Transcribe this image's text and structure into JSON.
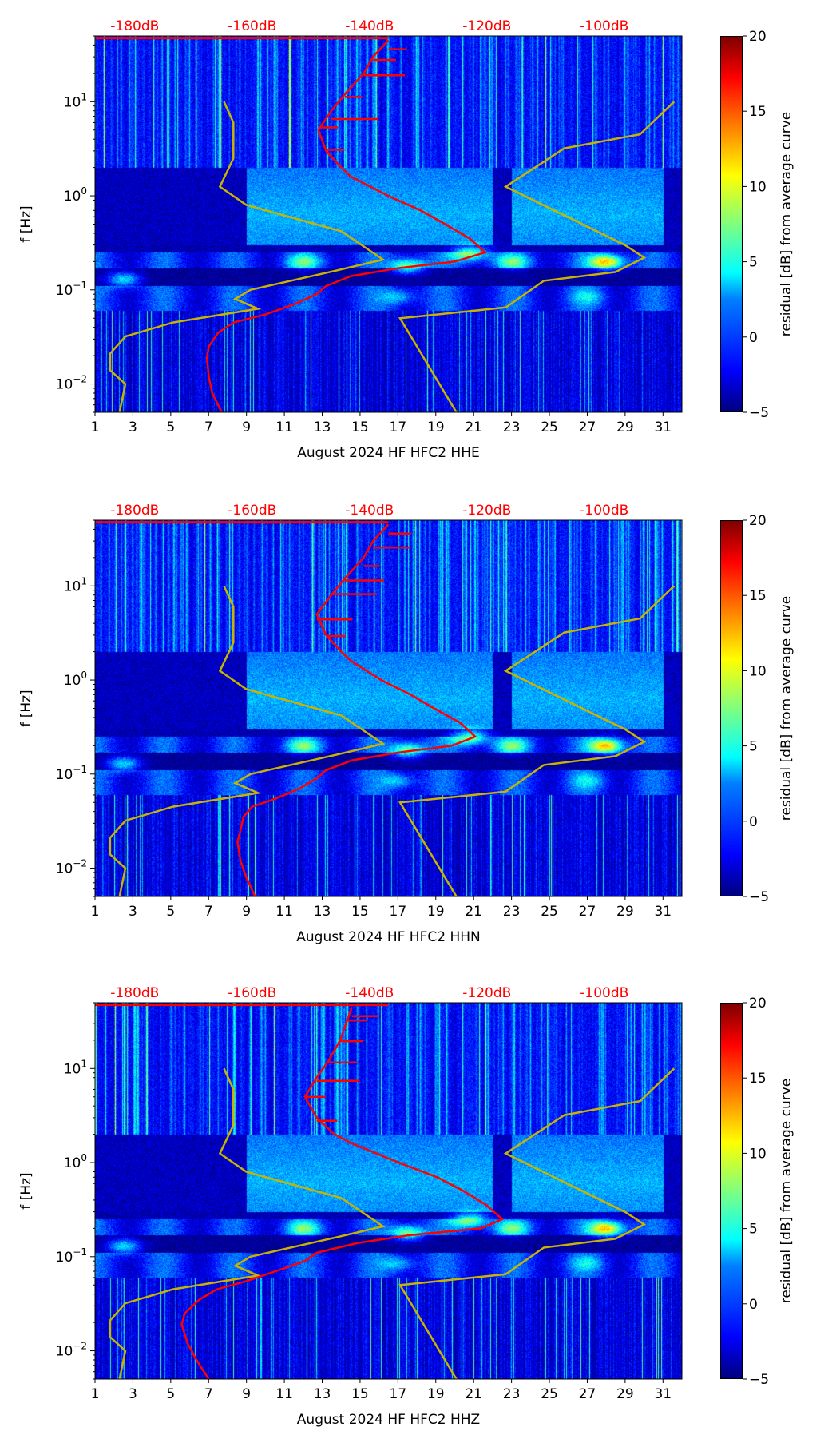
{
  "chart_data": [
    {
      "type": "heatmap",
      "title": "",
      "xlabel": "August 2024 HF HFC2  HHE",
      "ylabel": "f [Hz]",
      "colorbar_label": "residual [dB] from average curve",
      "colorbar_ticks": [
        "20",
        "15",
        "10",
        "5",
        "0",
        "−5"
      ],
      "colorbar_range": [
        -5,
        20
      ],
      "x_ticks": [
        "1",
        "3",
        "5",
        "7",
        "9",
        "11",
        "13",
        "15",
        "17",
        "19",
        "21",
        "23",
        "25",
        "27",
        "29",
        "31"
      ],
      "xlim": [
        1,
        32
      ],
      "y_scale": "log",
      "ylim": [
        0.005,
        50
      ],
      "y_ticks": [
        {
          "base": "10",
          "exp": "1"
        },
        {
          "base": "10",
          "exp": "0"
        },
        {
          "base": "10",
          "exp": "−1"
        },
        {
          "base": "10",
          "exp": "−2"
        }
      ],
      "top_axis_ticks": [
        "-180dB",
        "-160dB",
        "-140dB",
        "-120dB",
        "-100dB"
      ],
      "top_axis_color": "#ff0000",
      "red_curve_db": [
        [
          45,
          -136.8
        ],
        [
          30,
          -139.4
        ],
        [
          20,
          -141
        ],
        [
          12,
          -144.2
        ],
        [
          8,
          -146.5
        ],
        [
          5,
          -148.7
        ],
        [
          3,
          -147.4
        ],
        [
          2,
          -144.8
        ],
        [
          1.6,
          -143.2
        ],
        [
          1,
          -136.8
        ],
        [
          0.7,
          -131.3
        ],
        [
          0.5,
          -127.1
        ],
        [
          0.35,
          -122.9
        ],
        [
          0.25,
          -120.3
        ],
        [
          0.2,
          -125.5
        ],
        [
          0.17,
          -135.2
        ],
        [
          0.14,
          -143.2
        ],
        [
          0.11,
          -147.4
        ],
        [
          0.09,
          -149
        ],
        [
          0.07,
          -152.9
        ],
        [
          0.055,
          -157.7
        ],
        [
          0.045,
          -163.2
        ],
        [
          0.035,
          -165.8
        ],
        [
          0.025,
          -167.4
        ],
        [
          0.019,
          -167.7
        ],
        [
          0.012,
          -167.4
        ],
        [
          0.008,
          -166.8
        ],
        [
          0.005,
          -165.2
        ]
      ]
    },
    {
      "type": "heatmap",
      "title": "",
      "xlabel": "August 2024 HF HFC2  HHN",
      "ylabel": "f [Hz]",
      "colorbar_label": "residual [dB] from average curve",
      "colorbar_ticks": [
        "20",
        "15",
        "10",
        "5",
        "0",
        "−5"
      ],
      "colorbar_range": [
        -5,
        20
      ],
      "x_ticks": [
        "1",
        "3",
        "5",
        "7",
        "9",
        "11",
        "13",
        "15",
        "17",
        "19",
        "21",
        "23",
        "25",
        "27",
        "29",
        "31"
      ],
      "xlim": [
        1,
        32
      ],
      "y_scale": "log",
      "ylim": [
        0.005,
        50
      ],
      "y_ticks": [
        {
          "base": "10",
          "exp": "1"
        },
        {
          "base": "10",
          "exp": "0"
        },
        {
          "base": "10",
          "exp": "−1"
        },
        {
          "base": "10",
          "exp": "−2"
        }
      ],
      "top_axis_ticks": [
        "-180dB",
        "-160dB",
        "-140dB",
        "-120dB",
        "-100dB"
      ],
      "top_axis_color": "#ff0000",
      "red_curve_db": [
        [
          45,
          -136.8
        ],
        [
          30,
          -139.4
        ],
        [
          20,
          -141
        ],
        [
          12,
          -144.2
        ],
        [
          8,
          -146.5
        ],
        [
          5,
          -149
        ],
        [
          3,
          -147.4
        ],
        [
          2,
          -144.8
        ],
        [
          1.6,
          -143.2
        ],
        [
          1,
          -138
        ],
        [
          0.7,
          -133
        ],
        [
          0.5,
          -129
        ],
        [
          0.35,
          -124.5
        ],
        [
          0.25,
          -122
        ],
        [
          0.2,
          -126
        ],
        [
          0.17,
          -135
        ],
        [
          0.14,
          -143
        ],
        [
          0.11,
          -147.4
        ],
        [
          0.09,
          -149
        ],
        [
          0.07,
          -152
        ],
        [
          0.055,
          -156
        ],
        [
          0.045,
          -160
        ],
        [
          0.035,
          -161.5
        ],
        [
          0.025,
          -162
        ],
        [
          0.019,
          -162.5
        ],
        [
          0.012,
          -162
        ],
        [
          0.008,
          -161
        ],
        [
          0.005,
          -159.5
        ]
      ]
    },
    {
      "type": "heatmap",
      "title": "",
      "xlabel": "August 2024 HF HFC2  HHZ",
      "ylabel": "f [Hz]",
      "colorbar_label": "residual [dB] from average curve",
      "colorbar_ticks": [
        "20",
        "15",
        "10",
        "5",
        "0",
        "−5"
      ],
      "colorbar_range": [
        -5,
        20
      ],
      "x_ticks": [
        "1",
        "3",
        "5",
        "7",
        "9",
        "11",
        "13",
        "15",
        "17",
        "19",
        "21",
        "23",
        "25",
        "27",
        "29",
        "31"
      ],
      "xlim": [
        1,
        32
      ],
      "y_scale": "log",
      "ylim": [
        0.005,
        50
      ],
      "y_ticks": [
        {
          "base": "10",
          "exp": "1"
        },
        {
          "base": "10",
          "exp": "0"
        },
        {
          "base": "10",
          "exp": "−1"
        },
        {
          "base": "10",
          "exp": "−2"
        }
      ],
      "top_axis_ticks": [
        "-180dB",
        "-160dB",
        "-140dB",
        "-120dB",
        "-100dB"
      ],
      "top_axis_color": "#ff0000",
      "red_curve_db": [
        [
          45,
          -143
        ],
        [
          30,
          -144
        ],
        [
          20,
          -145
        ],
        [
          12,
          -147
        ],
        [
          8,
          -149
        ],
        [
          5,
          -151
        ],
        [
          3,
          -149
        ],
        [
          2,
          -146
        ],
        [
          1.6,
          -143
        ],
        [
          1,
          -135
        ],
        [
          0.7,
          -128.5
        ],
        [
          0.5,
          -124
        ],
        [
          0.35,
          -120
        ],
        [
          0.25,
          -117.4
        ],
        [
          0.2,
          -121
        ],
        [
          0.17,
          -133
        ],
        [
          0.14,
          -142
        ],
        [
          0.11,
          -149
        ],
        [
          0.09,
          -151
        ],
        [
          0.07,
          -156
        ],
        [
          0.055,
          -161
        ],
        [
          0.045,
          -166
        ],
        [
          0.035,
          -169
        ],
        [
          0.025,
          -171.5
        ],
        [
          0.019,
          -172
        ],
        [
          0.012,
          -171
        ],
        [
          0.008,
          -169.5
        ],
        [
          0.005,
          -167.4
        ]
      ]
    }
  ],
  "noise_models": {
    "color": "#c8b400",
    "red_curve_color": "#ff0000",
    "low_noise_model_db": [
      [
        10,
        -164.8
      ],
      [
        6,
        -163.2
      ],
      [
        2.5,
        -163.2
      ],
      [
        1.25,
        -165.5
      ],
      [
        0.8,
        -161
      ],
      [
        0.42,
        -144.8
      ],
      [
        0.21,
        -137.7
      ],
      [
        0.16,
        -145.8
      ],
      [
        0.1,
        -160.3
      ],
      [
        0.08,
        -162.9
      ],
      [
        0.063,
        -159
      ],
      [
        0.045,
        -173.5
      ],
      [
        0.032,
        -181.6
      ],
      [
        0.021,
        -184.2
      ],
      [
        0.014,
        -184.2
      ],
      [
        0.01,
        -181.6
      ],
      [
        0.005,
        -182.6
      ]
    ],
    "high_noise_model_db": [
      [
        10,
        -88.1
      ],
      [
        4.5,
        -93.9
      ],
      [
        3.2,
        -106.8
      ],
      [
        1.25,
        -116.8
      ],
      [
        0.3,
        -96.5
      ],
      [
        0.22,
        -93.2
      ],
      [
        0.155,
        -98.1
      ],
      [
        0.125,
        -110.3
      ],
      [
        0.065,
        -116.8
      ],
      [
        0.05,
        -134.8
      ],
      [
        0.005,
        -125.2
      ]
    ]
  }
}
